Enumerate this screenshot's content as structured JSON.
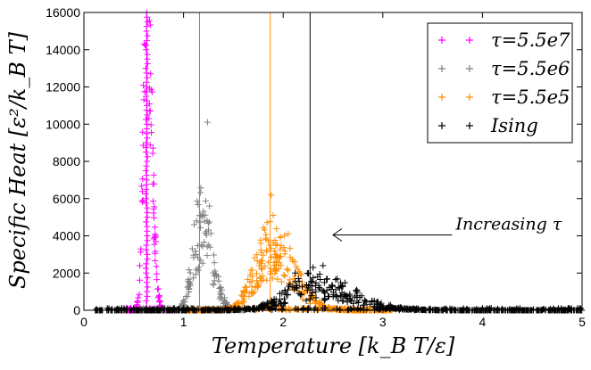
{
  "chart_data": {
    "type": "scatter",
    "xlabel": "Temperature [k_B T/ε]",
    "ylabel": "Specific Heat [ε²/k_B T]",
    "xlim": [
      0,
      5
    ],
    "ylim": [
      0,
      16000
    ],
    "x_ticks": [
      "0",
      "1",
      "2",
      "3",
      "4",
      "5"
    ],
    "y_ticks": [
      "0",
      "2000",
      "4000",
      "6000",
      "8000",
      "10000",
      "12000",
      "14000",
      "16000"
    ],
    "legend_position": "top-right",
    "annotation": {
      "text": "Increasing τ",
      "arrow_from": [
        3.75,
        4000
      ],
      "arrow_to": [
        2.5,
        4000
      ]
    },
    "series": [
      {
        "name": "τ=5.5e7",
        "color": "#ff00ff",
        "marker": "+",
        "vline_x": 0.63,
        "peak_x": 0.63,
        "peak_y": 16000,
        "width": 0.07,
        "noise": 0.35,
        "count": 120,
        "x_range": [
          0.4,
          0.85
        ]
      },
      {
        "name": "τ=5.5e6",
        "color": "#808080",
        "marker": "+",
        "vline_x": 1.16,
        "peak_x": 1.17,
        "peak_y": 4700,
        "width": 0.16,
        "noise": 0.45,
        "count": 200,
        "x_range": [
          0.55,
          1.6
        ],
        "outliers": [
          [
            1.24,
            10100
          ],
          [
            1.26,
            5600
          ],
          [
            1.13,
            4800
          ]
        ]
      },
      {
        "name": "τ=5.5e5",
        "color": "#ff8c00",
        "marker": "+",
        "vline_x": 1.87,
        "peak_x": 1.87,
        "peak_y": 3300,
        "width": 0.32,
        "noise": 0.5,
        "count": 380,
        "x_range": [
          1.0,
          3.1
        ],
        "outliers": [
          [
            1.88,
            6200
          ],
          [
            1.9,
            5100
          ],
          [
            2.05,
            4100
          ]
        ]
      },
      {
        "name": "Ising",
        "color": "#000000",
        "marker": "+",
        "vline_x": 2.27,
        "peak_x": 2.3,
        "peak_y": 1300,
        "width": 0.55,
        "noise": 0.6,
        "count": 650,
        "x_range": [
          0.1,
          5.0
        ],
        "outliers": [
          [
            2.4,
            2400
          ],
          [
            2.3,
            2300
          ],
          [
            2.12,
            2000
          ]
        ]
      }
    ]
  }
}
